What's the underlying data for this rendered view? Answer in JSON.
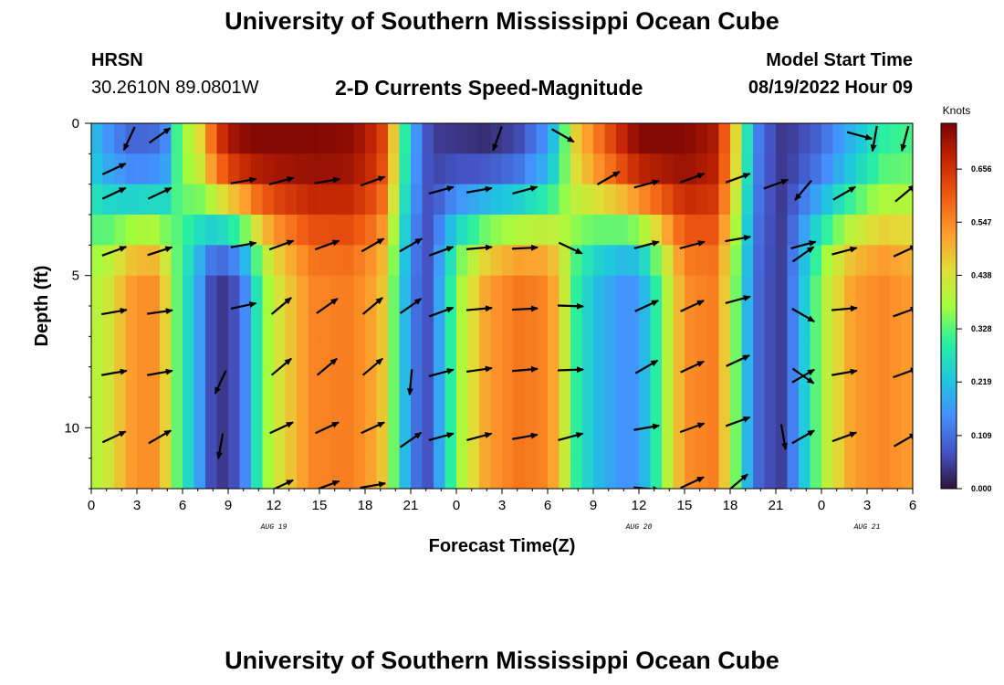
{
  "header": {
    "title": "University of Southern Mississippi Ocean Cube",
    "station": "HRSN",
    "coordinates": "30.2610N  89.0801W",
    "subtitle": "2-D Currents Speed-Magnitude",
    "model_start_label": "Model Start Time",
    "model_start_value": "08/19/2022 Hour 09"
  },
  "footer": {
    "title": "University of Southern Mississippi Ocean Cube"
  },
  "chart_data": {
    "type": "heatmap",
    "title": "2-D Currents Speed-Magnitude",
    "xlabel": "Forecast Time(Z)",
    "ylabel": "Depth (ft)",
    "x_tick_labels": [
      "0",
      "3",
      "6",
      "9",
      "12",
      "15",
      "18",
      "21",
      "0",
      "3",
      "6",
      "9",
      "12",
      "15",
      "18",
      "21",
      "0",
      "3",
      "6"
    ],
    "x_hours_range": [
      0,
      54
    ],
    "date_labels": [
      {
        "text": "AUG 19",
        "hour": 12
      },
      {
        "text": "AUG 20",
        "hour": 36
      },
      {
        "text": "AUG 21",
        "hour": 51
      }
    ],
    "y_tick_labels": [
      "0",
      "5",
      "10"
    ],
    "y_tick_values": [
      0,
      5,
      10
    ],
    "ylim": [
      0,
      12
    ],
    "depths": [
      0.3,
      1.3,
      2.3,
      3.3,
      4.3,
      5.3,
      6.3,
      7.3,
      8.3,
      9.3,
      10.3,
      11.3
    ],
    "colorbar": {
      "title": "Knots",
      "ticks": [
        "0.000",
        "0.109",
        "0.219",
        "0.328",
        "0.438",
        "0.547",
        "0.656"
      ],
      "tick_values": [
        0.0,
        0.109,
        0.219,
        0.328,
        0.438,
        0.547,
        0.656
      ],
      "range": [
        0,
        0.75
      ]
    },
    "speed_profile_hours": [
      0,
      0.5,
      1,
      2.5,
      4,
      5,
      5.5,
      6.5,
      7.5,
      8,
      9,
      10,
      11,
      12,
      14.5,
      17,
      19,
      20,
      21,
      22,
      22.5,
      24,
      26,
      28,
      30,
      31,
      31.5,
      33,
      35,
      36,
      37,
      39,
      41,
      42,
      43,
      44,
      45.5,
      46.5,
      48,
      50,
      52,
      54
    ],
    "speed_profile": {
      "bottom": [
        0.4,
        0.4,
        0.42,
        0.52,
        0.55,
        0.45,
        0.35,
        0.24,
        0.12,
        0.05,
        0.04,
        0.12,
        0.3,
        0.42,
        0.55,
        0.56,
        0.5,
        0.32,
        0.14,
        0.06,
        0.12,
        0.36,
        0.52,
        0.57,
        0.55,
        0.45,
        0.33,
        0.22,
        0.15,
        0.16,
        0.28,
        0.54,
        0.56,
        0.42,
        0.22,
        0.08,
        0.05,
        0.18,
        0.38,
        0.52,
        0.55,
        0.52
      ],
      "top": [
        0.2,
        0.2,
        0.16,
        0.1,
        0.1,
        0.15,
        0.3,
        0.4,
        0.48,
        0.6,
        0.7,
        0.73,
        0.74,
        0.74,
        0.74,
        0.73,
        0.66,
        0.45,
        0.2,
        0.08,
        0.05,
        0.04,
        0.03,
        0.06,
        0.16,
        0.3,
        0.44,
        0.55,
        0.68,
        0.74,
        0.74,
        0.74,
        0.7,
        0.55,
        0.3,
        0.1,
        0.04,
        0.06,
        0.1,
        0.2,
        0.3,
        0.32
      ]
    },
    "vectors": [
      {
        "hour": 1.5,
        "depth": 1.5,
        "angle": -25
      },
      {
        "hour": 1.5,
        "depth": 2.3,
        "angle": -25
      },
      {
        "hour": 2.5,
        "depth": 0.5,
        "angle": 115
      },
      {
        "hour": 4.5,
        "depth": 0.4,
        "angle": -35
      },
      {
        "hour": 4.5,
        "depth": 2.3,
        "angle": -25
      },
      {
        "hour": 1.5,
        "depth": 4.2,
        "angle": -20
      },
      {
        "hour": 4.5,
        "depth": 4.2,
        "angle": -18
      },
      {
        "hour": 1.5,
        "depth": 6.2,
        "angle": -10
      },
      {
        "hour": 4.5,
        "depth": 6.2,
        "angle": -8
      },
      {
        "hour": 1.5,
        "depth": 8.2,
        "angle": -10
      },
      {
        "hour": 4.5,
        "depth": 8.2,
        "angle": -10
      },
      {
        "hour": 1.5,
        "depth": 10.3,
        "angle": -25
      },
      {
        "hour": 4.5,
        "depth": 10.3,
        "angle": -30
      },
      {
        "hour": 8.5,
        "depth": 8.5,
        "angle": 115
      },
      {
        "hour": 8.5,
        "depth": 10.6,
        "angle": 100
      },
      {
        "hour": 10,
        "depth": 1.9,
        "angle": -10
      },
      {
        "hour": 10,
        "depth": 4.0,
        "angle": -10
      },
      {
        "hour": 10,
        "depth": 6.0,
        "angle": -12
      },
      {
        "hour": 12.5,
        "depth": 1.9,
        "angle": -15
      },
      {
        "hour": 12.5,
        "depth": 4.0,
        "angle": -20
      },
      {
        "hour": 12.5,
        "depth": 6.0,
        "angle": -40
      },
      {
        "hour": 12.5,
        "depth": 8.0,
        "angle": -40
      },
      {
        "hour": 12.5,
        "depth": 10.0,
        "angle": -25
      },
      {
        "hour": 12.5,
        "depth": 11.9,
        "angle": -25
      },
      {
        "hour": 15.5,
        "depth": 1.9,
        "angle": -10
      },
      {
        "hour": 15.5,
        "depth": 4.0,
        "angle": -20
      },
      {
        "hour": 15.5,
        "depth": 6.0,
        "angle": -35
      },
      {
        "hour": 15.5,
        "depth": 8.0,
        "angle": -40
      },
      {
        "hour": 15.5,
        "depth": 10.0,
        "angle": -25
      },
      {
        "hour": 15.5,
        "depth": 11.9,
        "angle": -20
      },
      {
        "hour": 18.5,
        "depth": 1.9,
        "angle": -20
      },
      {
        "hour": 18.5,
        "depth": 4.0,
        "angle": -30
      },
      {
        "hour": 18.5,
        "depth": 6.0,
        "angle": -40
      },
      {
        "hour": 18.5,
        "depth": 8.0,
        "angle": -40
      },
      {
        "hour": 18.5,
        "depth": 10.0,
        "angle": -25
      },
      {
        "hour": 18.5,
        "depth": 11.9,
        "angle": -10
      },
      {
        "hour": 21,
        "depth": 4.0,
        "angle": -30
      },
      {
        "hour": 21,
        "depth": 6.0,
        "angle": -35
      },
      {
        "hour": 21,
        "depth": 8.5,
        "angle": 95
      },
      {
        "hour": 21,
        "depth": 10.4,
        "angle": -35
      },
      {
        "hour": 23,
        "depth": 2.2,
        "angle": -15
      },
      {
        "hour": 23,
        "depth": 4.2,
        "angle": -20
      },
      {
        "hour": 23,
        "depth": 6.2,
        "angle": -20
      },
      {
        "hour": 23,
        "depth": 8.2,
        "angle": -15
      },
      {
        "hour": 23,
        "depth": 10.3,
        "angle": -15
      },
      {
        "hour": 25.5,
        "depth": 2.2,
        "angle": -10
      },
      {
        "hour": 25.5,
        "depth": 4.1,
        "angle": -5
      },
      {
        "hour": 25.5,
        "depth": 6.1,
        "angle": -5
      },
      {
        "hour": 25.5,
        "depth": 8.1,
        "angle": -8
      },
      {
        "hour": 25.5,
        "depth": 10.3,
        "angle": -15
      },
      {
        "hour": 26.7,
        "depth": 0.5,
        "angle": 110
      },
      {
        "hour": 28.5,
        "depth": 2.2,
        "angle": -15
      },
      {
        "hour": 28.5,
        "depth": 4.1,
        "angle": -3
      },
      {
        "hour": 28.5,
        "depth": 6.1,
        "angle": -3
      },
      {
        "hour": 28.5,
        "depth": 8.1,
        "angle": -5
      },
      {
        "hour": 28.5,
        "depth": 10.3,
        "angle": -10
      },
      {
        "hour": 31,
        "depth": 0.4,
        "angle": 30
      },
      {
        "hour": 31.5,
        "depth": 4.1,
        "angle": 25
      },
      {
        "hour": 31.5,
        "depth": 6.0,
        "angle": 2
      },
      {
        "hour": 31.5,
        "depth": 8.1,
        "angle": -2
      },
      {
        "hour": 31.5,
        "depth": 10.3,
        "angle": -15
      },
      {
        "hour": 34,
        "depth": 1.8,
        "angle": -30
      },
      {
        "hour": 36.5,
        "depth": 2.0,
        "angle": -15
      },
      {
        "hour": 36.5,
        "depth": 4.0,
        "angle": -15
      },
      {
        "hour": 36.5,
        "depth": 6.0,
        "angle": -25
      },
      {
        "hour": 36.5,
        "depth": 8.0,
        "angle": -30
      },
      {
        "hour": 36.5,
        "depth": 10.0,
        "angle": -10
      },
      {
        "hour": 36.5,
        "depth": 12.0,
        "angle": 5
      },
      {
        "hour": 39.5,
        "depth": 1.8,
        "angle": -20
      },
      {
        "hour": 39.5,
        "depth": 4.0,
        "angle": -15
      },
      {
        "hour": 39.5,
        "depth": 6.0,
        "angle": -25
      },
      {
        "hour": 39.5,
        "depth": 8.0,
        "angle": -25
      },
      {
        "hour": 39.5,
        "depth": 10.0,
        "angle": -20
      },
      {
        "hour": 39.5,
        "depth": 11.8,
        "angle": -25
      },
      {
        "hour": 42.5,
        "depth": 1.8,
        "angle": -20
      },
      {
        "hour": 42.5,
        "depth": 3.8,
        "angle": -10
      },
      {
        "hour": 42.5,
        "depth": 5.8,
        "angle": -15
      },
      {
        "hour": 42.5,
        "depth": 7.8,
        "angle": -25
      },
      {
        "hour": 42.5,
        "depth": 9.8,
        "angle": -20
      },
      {
        "hour": 42.5,
        "depth": 11.8,
        "angle": -40
      },
      {
        "hour": 45,
        "depth": 2.0,
        "angle": -20
      },
      {
        "hour": 45.5,
        "depth": 10.3,
        "angle": 80
      },
      {
        "hour": 46.8,
        "depth": 2.2,
        "angle": 130
      },
      {
        "hour": 46.8,
        "depth": 4.0,
        "angle": -15
      },
      {
        "hour": 46.8,
        "depth": 4.3,
        "angle": -35
      },
      {
        "hour": 46.8,
        "depth": 6.3,
        "angle": 30
      },
      {
        "hour": 46.8,
        "depth": 8.3,
        "angle": 35
      },
      {
        "hour": 46.8,
        "depth": 8.3,
        "angle": -30
      },
      {
        "hour": 46.8,
        "depth": 10.3,
        "angle": -30
      },
      {
        "hour": 49.5,
        "depth": 2.3,
        "angle": -30
      },
      {
        "hour": 49.5,
        "depth": 4.2,
        "angle": -15
      },
      {
        "hour": 49.5,
        "depth": 6.1,
        "angle": -5
      },
      {
        "hour": 49.5,
        "depth": 8.2,
        "angle": -10
      },
      {
        "hour": 49.5,
        "depth": 10.3,
        "angle": -20
      },
      {
        "hour": 50.5,
        "depth": 0.4,
        "angle": 15
      },
      {
        "hour": 51.5,
        "depth": 0.5,
        "angle": 100
      },
      {
        "hour": 53.5,
        "depth": 0.5,
        "angle": 105
      },
      {
        "hour": 53.5,
        "depth": 2.3,
        "angle": -40
      },
      {
        "hour": 53.5,
        "depth": 4.2,
        "angle": -25
      },
      {
        "hour": 53.5,
        "depth": 6.2,
        "angle": -20
      },
      {
        "hour": 53.5,
        "depth": 8.2,
        "angle": -20
      },
      {
        "hour": 53.5,
        "depth": 10.4,
        "angle": -30
      }
    ]
  }
}
